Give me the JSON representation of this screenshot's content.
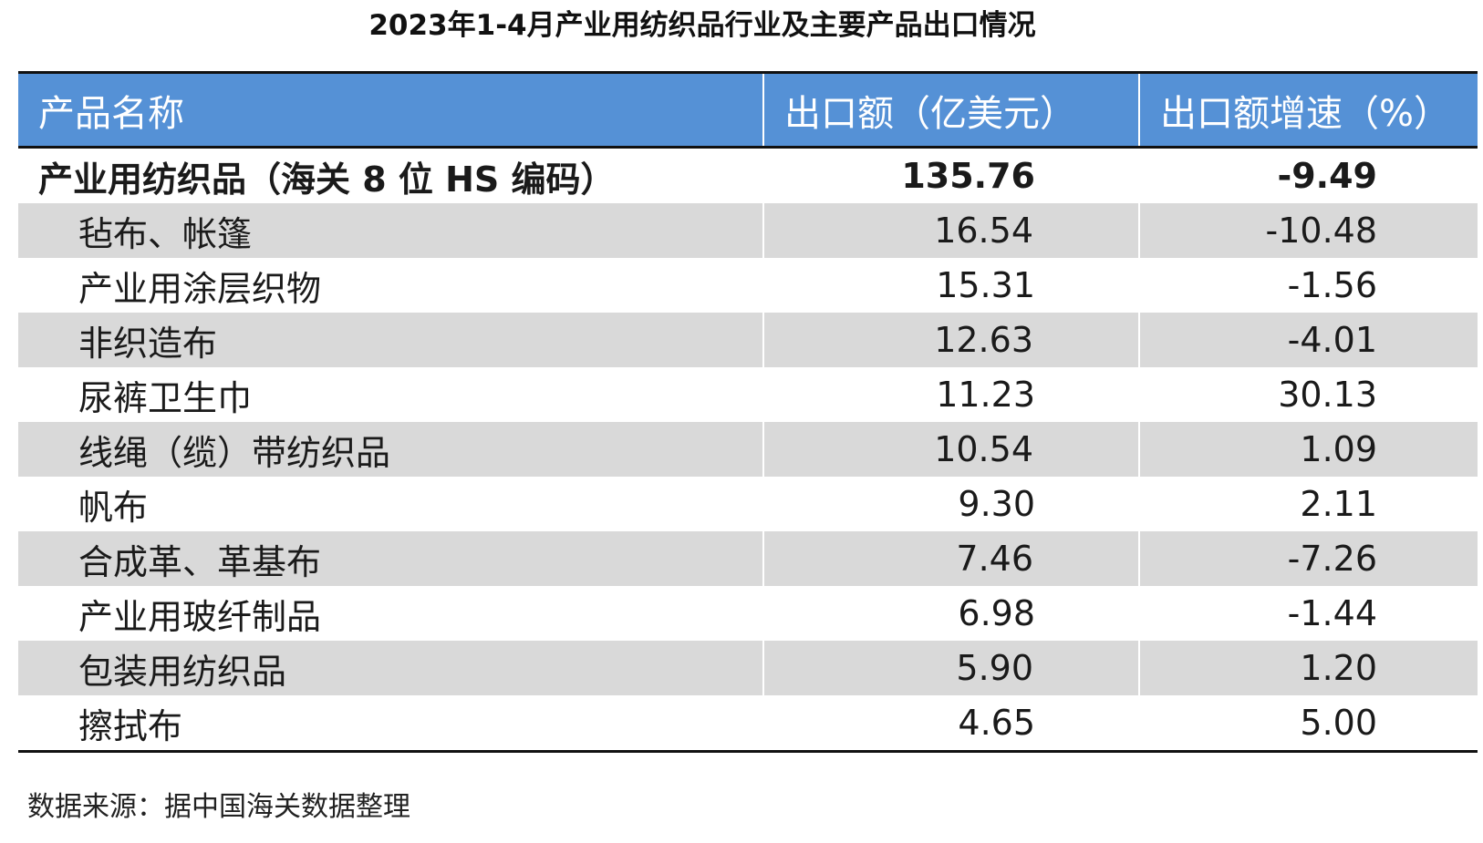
{
  "title": "2023年1-4月产业用纺织品行业及主要产品出口情况",
  "table": {
    "headers": [
      "产品名称",
      "出口额（亿美元）",
      "出口额增速（%）"
    ],
    "total": {
      "name": "产业用纺织品（海关 8 位 HS 编码）",
      "value": "135.76",
      "growth": "-9.49"
    },
    "rows": [
      {
        "name": "毡布、帐篷",
        "value": "16.54",
        "growth": "-10.48"
      },
      {
        "name": "产业用涂层织物",
        "value": "15.31",
        "growth": "-1.56"
      },
      {
        "name": "非织造布",
        "value": "12.63",
        "growth": "-4.01"
      },
      {
        "name": "尿裤卫生巾",
        "value": "11.23",
        "growth": "30.13"
      },
      {
        "name": "线绳（缆）带纺织品",
        "value": "10.54",
        "growth": "1.09"
      },
      {
        "name": "帆布",
        "value": "9.30",
        "growth": "2.11"
      },
      {
        "name": "合成革、革基布",
        "value": "7.46",
        "growth": "-7.26"
      },
      {
        "name": "产业用玻纤制品",
        "value": "6.98",
        "growth": "-1.44"
      },
      {
        "name": "包装用纺织品",
        "value": "5.90",
        "growth": "1.20"
      },
      {
        "name": "擦拭布",
        "value": "4.65",
        "growth": "5.00"
      }
    ]
  },
  "source": "数据来源：据中国海关数据整理",
  "colors": {
    "header_bg": "#5591d6",
    "shade_bg": "#d9d9d9"
  }
}
